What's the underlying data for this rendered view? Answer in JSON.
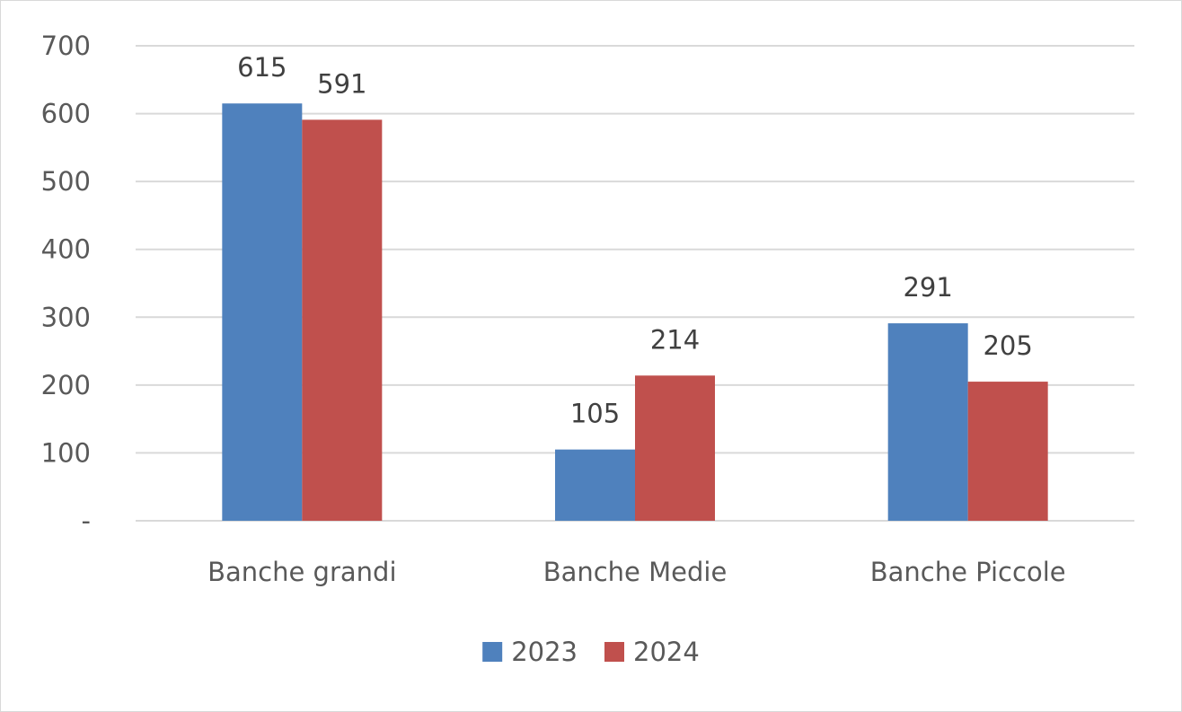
{
  "chart_data": {
    "type": "bar",
    "categories": [
      "Banche grandi",
      "Banche Medie",
      "Banche Piccole"
    ],
    "series": [
      {
        "name": "2023",
        "values": [
          615,
          105,
          291
        ],
        "color": "#4f81bd"
      },
      {
        "name": "2024",
        "values": [
          591,
          214,
          205
        ],
        "color": "#c0504d"
      }
    ],
    "y_ticks": [
      {
        "value": 0,
        "label": "-"
      },
      {
        "value": 100,
        "label": "100"
      },
      {
        "value": 200,
        "label": "200"
      },
      {
        "value": 300,
        "label": "300"
      },
      {
        "value": 400,
        "label": "400"
      },
      {
        "value": 500,
        "label": "500"
      },
      {
        "value": 600,
        "label": "600"
      },
      {
        "value": 700,
        "label": "700"
      }
    ],
    "ylim": [
      0,
      700
    ],
    "grid": true,
    "legend_position": "bottom",
    "data_labels": true
  }
}
